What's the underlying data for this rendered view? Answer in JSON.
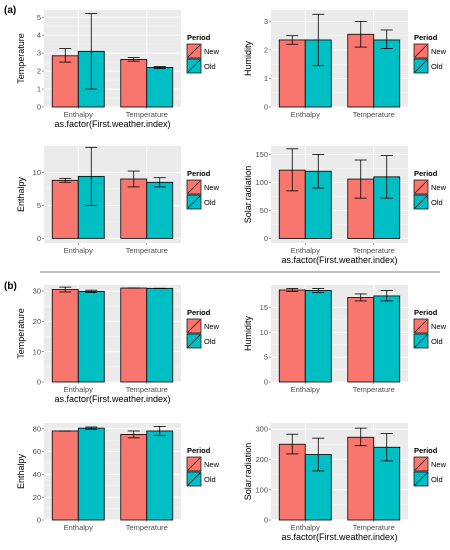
{
  "figure": {
    "panel_labels": [
      "(a)",
      "(b)"
    ],
    "colors": {
      "New": "#f8766d",
      "Old": "#00bfc4"
    }
  },
  "chart_data": [
    {
      "group": "(a)",
      "type": "bar",
      "categories": [
        "Enthalpy",
        "Temperature"
      ],
      "xlabel": "as.factor(First.weather.index)",
      "ylabel": "Temperature",
      "ylim": [
        0,
        5.4
      ],
      "yticks": [
        0,
        1,
        2,
        3,
        4,
        5
      ],
      "legend": {
        "title": "Period",
        "entries": [
          "New",
          "Old"
        ],
        "placement": "right"
      },
      "series": [
        {
          "name": "New",
          "values": [
            2.85,
            2.65
          ],
          "err_low": [
            2.5,
            2.55
          ],
          "err_high": [
            3.25,
            2.75
          ]
        },
        {
          "name": "Old",
          "values": [
            3.1,
            2.2
          ],
          "err_low": [
            1.0,
            2.15
          ],
          "err_high": [
            5.2,
            2.25
          ]
        }
      ]
    },
    {
      "group": "(a)",
      "type": "bar",
      "categories": [
        "Enthalpy",
        "Temperature"
      ],
      "xlabel": "",
      "ylabel": "Humidity",
      "ylim": [
        0,
        3.4
      ],
      "yticks": [
        0,
        1,
        2,
        3
      ],
      "legend": {
        "title": "Period",
        "entries": [
          "New",
          "Old"
        ],
        "placement": "right"
      },
      "series": [
        {
          "name": "New",
          "values": [
            2.35,
            2.55
          ],
          "err_low": [
            2.2,
            2.1
          ],
          "err_high": [
            2.5,
            3.0
          ]
        },
        {
          "name": "Old",
          "values": [
            2.35,
            2.35
          ],
          "err_low": [
            1.45,
            2.05
          ],
          "err_high": [
            3.25,
            2.7
          ]
        }
      ]
    },
    {
      "group": "(a)",
      "type": "bar",
      "categories": [
        "Enthalpy",
        "Temperature"
      ],
      "xlabel": "",
      "ylabel": "Enthalpy",
      "ylim": [
        -0.7,
        14
      ],
      "yticks": [
        0,
        5,
        10
      ],
      "legend": {
        "title": "Period",
        "entries": [
          "New",
          "Old"
        ],
        "placement": "right"
      },
      "series": [
        {
          "name": "New",
          "values": [
            8.8,
            9.0
          ],
          "err_low": [
            8.5,
            7.8
          ],
          "err_high": [
            9.1,
            10.2
          ]
        },
        {
          "name": "Old",
          "values": [
            9.4,
            8.5
          ],
          "err_low": [
            5.0,
            7.8
          ],
          "err_high": [
            13.8,
            9.2
          ]
        }
      ]
    },
    {
      "group": "(a)",
      "type": "bar",
      "categories": [
        "Enthalpy",
        "Temperature"
      ],
      "xlabel": "as.factor(First.weather.index)",
      "ylabel": "Solar.radiation",
      "ylim": [
        -8,
        165
      ],
      "yticks": [
        0,
        50,
        100,
        150
      ],
      "legend": {
        "title": "Period",
        "entries": [
          "New",
          "Old"
        ],
        "placement": "right"
      },
      "series": [
        {
          "name": "New",
          "values": [
            122,
            106
          ],
          "err_low": [
            85,
            72
          ],
          "err_high": [
            160,
            140
          ]
        },
        {
          "name": "Old",
          "values": [
            120,
            110
          ],
          "err_low": [
            90,
            72
          ],
          "err_high": [
            150,
            148
          ]
        }
      ]
    },
    {
      "group": "(b)",
      "type": "bar",
      "categories": [
        "Enthalpy",
        "Temperature"
      ],
      "xlabel": "as.factor(First.weather.index)",
      "ylabel": "Temperature",
      "ylim": [
        0,
        32
      ],
      "yticks": [
        0,
        10,
        20,
        30
      ],
      "legend": {
        "title": "Period",
        "entries": [
          "New",
          "Old"
        ],
        "placement": "right"
      },
      "series": [
        {
          "name": "New",
          "values": [
            30.5,
            31.0
          ],
          "err_low": [
            29.7,
            31.0
          ],
          "err_high": [
            31.3,
            31.0
          ]
        },
        {
          "name": "Old",
          "values": [
            29.9,
            30.9
          ],
          "err_low": [
            29.5,
            30.9
          ],
          "err_high": [
            30.3,
            30.9
          ]
        }
      ]
    },
    {
      "group": "(b)",
      "type": "bar",
      "categories": [
        "Enthalpy",
        "Temperature"
      ],
      "xlabel": "",
      "ylabel": "Humidity",
      "ylim": [
        0,
        19.5
      ],
      "yticks": [
        0,
        5,
        10,
        15
      ],
      "legend": {
        "title": "Period",
        "entries": [
          "New",
          "Old"
        ],
        "placement": "right"
      },
      "series": [
        {
          "name": "New",
          "values": [
            18.5,
            17.0
          ],
          "err_low": [
            18.2,
            16.3
          ],
          "err_high": [
            18.8,
            17.7
          ]
        },
        {
          "name": "Old",
          "values": [
            18.4,
            17.3
          ],
          "err_low": [
            18.0,
            16.3
          ],
          "err_high": [
            18.8,
            18.4
          ]
        }
      ]
    },
    {
      "group": "(b)",
      "type": "bar",
      "categories": [
        "Enthalpy",
        "Temperature"
      ],
      "xlabel": "",
      "ylabel": "Enthalpy",
      "ylim": [
        0,
        85
      ],
      "yticks": [
        0,
        20,
        40,
        60,
        80
      ],
      "legend": {
        "title": "Period",
        "entries": [
          "New",
          "Old"
        ],
        "placement": "right"
      },
      "series": [
        {
          "name": "New",
          "values": [
            78,
            75
          ],
          "err_low": [
            78,
            72
          ],
          "err_high": [
            78,
            78
          ]
        },
        {
          "name": "Old",
          "values": [
            80.5,
            78
          ],
          "err_low": [
            79.5,
            74
          ],
          "err_high": [
            81.5,
            82
          ]
        }
      ]
    },
    {
      "group": "(b)",
      "type": "bar",
      "categories": [
        "Enthalpy",
        "Temperature"
      ],
      "xlabel": "as.factor(First.weather.index)",
      "ylabel": "Solar.radiation",
      "ylim": [
        0,
        320
      ],
      "yticks": [
        0,
        100,
        200,
        300
      ],
      "legend": {
        "title": "Period",
        "entries": [
          "New",
          "Old"
        ],
        "placement": "right"
      },
      "series": [
        {
          "name": "New",
          "values": [
            250,
            273
          ],
          "err_low": [
            218,
            245
          ],
          "err_high": [
            283,
            303
          ]
        },
        {
          "name": "Old",
          "values": [
            216,
            240
          ],
          "err_low": [
            162,
            195
          ],
          "err_high": [
            270,
            285
          ]
        }
      ]
    }
  ]
}
